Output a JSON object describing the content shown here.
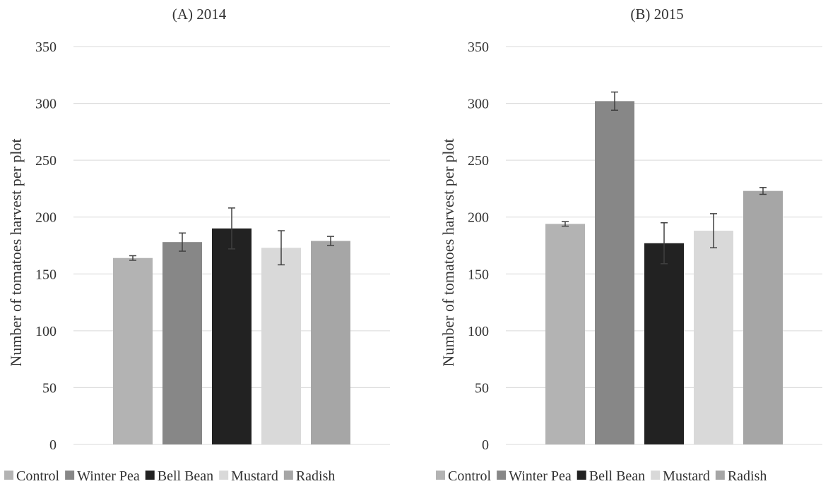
{
  "chart_data": [
    {
      "type": "bar",
      "title": "(A) 2014",
      "ylabel": "Number of tomatoes harvest per plot",
      "xlabel": "",
      "ylim": [
        0,
        350
      ],
      "yticks": [
        0,
        50,
        100,
        150,
        200,
        250,
        300,
        350
      ],
      "grid": true,
      "legend_position": "bottom",
      "series": [
        {
          "name": "Control",
          "value": 164,
          "error": 2,
          "color": "#b3b3b3"
        },
        {
          "name": "Winter Pea",
          "value": 178,
          "error": 8,
          "color": "#878787"
        },
        {
          "name": "Bell Bean",
          "value": 190,
          "error": 18,
          "color": "#222222"
        },
        {
          "name": "Mustard",
          "value": 173,
          "error": 15,
          "color": "#d9d9d9"
        },
        {
          "name": "Radish",
          "value": 179,
          "error": 4,
          "color": "#a6a6a6"
        }
      ]
    },
    {
      "type": "bar",
      "title": "(B) 2015",
      "ylabel": "Number of tomatoes harvest per plot",
      "xlabel": "",
      "ylim": [
        0,
        350
      ],
      "yticks": [
        0,
        50,
        100,
        150,
        200,
        250,
        300,
        350
      ],
      "grid": true,
      "legend_position": "bottom",
      "series": [
        {
          "name": "Control",
          "value": 194,
          "error": 2,
          "color": "#b3b3b3"
        },
        {
          "name": "Winter Pea",
          "value": 302,
          "error": 8,
          "color": "#878787"
        },
        {
          "name": "Bell Bean",
          "value": 177,
          "error": 18,
          "color": "#222222"
        },
        {
          "name": "Mustard",
          "value": 188,
          "error": 15,
          "color": "#d9d9d9"
        },
        {
          "name": "Radish",
          "value": 223,
          "error": 3,
          "color": "#a6a6a6"
        }
      ]
    }
  ]
}
